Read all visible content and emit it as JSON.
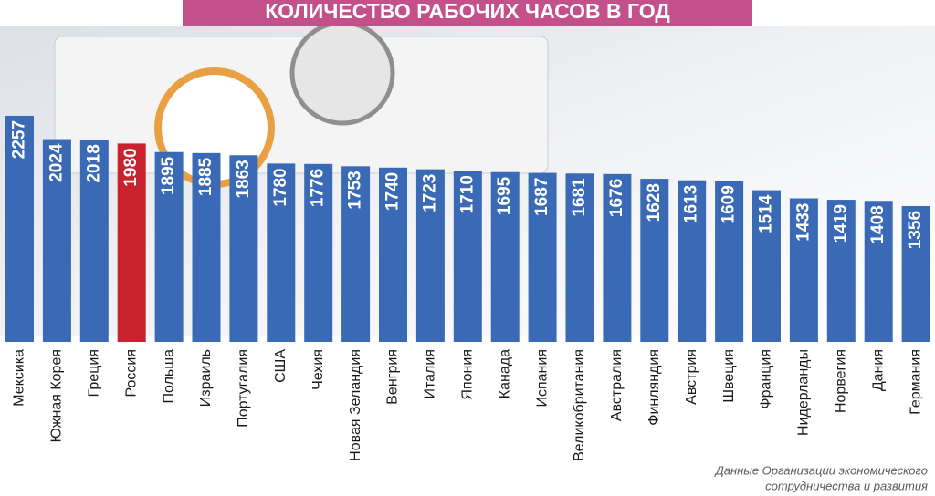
{
  "chart_data": {
    "type": "bar",
    "title": "КОЛИЧЕСТВО РАБОЧИХ ЧАСОВ В ГОД",
    "categories": [
      "Мексика",
      "Южная Корея",
      "Греция",
      "Россия",
      "Польша",
      "Израиль",
      "Португалия",
      "США",
      "Чехия",
      "Новая Зеландия",
      "Венгрия",
      "Италия",
      "Япония",
      "Канада",
      "Испания",
      "Великобритания",
      "Австралия",
      "Финляндия",
      "Австрия",
      "Швеция",
      "Франция",
      "Нидерланды",
      "Норвегия",
      "Дания",
      "Германия"
    ],
    "values": [
      2257,
      2024,
      2018,
      1980,
      1895,
      1885,
      1863,
      1780,
      1776,
      1753,
      1740,
      1723,
      1710,
      1695,
      1687,
      1681,
      1676,
      1628,
      1613,
      1609,
      1514,
      1433,
      1419,
      1408,
      1356
    ],
    "colors": [
      "#3a6ab6",
      "#3a6ab6",
      "#3a6ab6",
      "#c8222e",
      "#3a6ab6",
      "#3a6ab6",
      "#3a6ab6",
      "#3a6ab6",
      "#3a6ab6",
      "#3a6ab6",
      "#3a6ab6",
      "#3a6ab6",
      "#3a6ab6",
      "#3a6ab6",
      "#3a6ab6",
      "#3a6ab6",
      "#3a6ab6",
      "#3a6ab6",
      "#3a6ab6",
      "#3a6ab6",
      "#3a6ab6",
      "#3a6ab6",
      "#3a6ab6",
      "#3a6ab6",
      "#3a6ab6"
    ],
    "source_lines": [
      "Данные Организации экономического",
      "сотрудничества и развития"
    ]
  }
}
